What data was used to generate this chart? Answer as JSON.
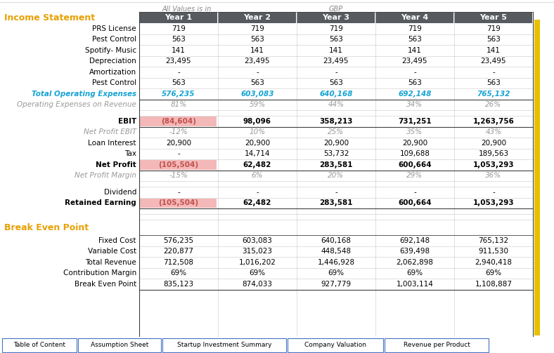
{
  "header_row": [
    "Year 1",
    "Year 2",
    "Year 3",
    "Year 4",
    "Year 5"
  ],
  "section1_title": "Income Statement",
  "rows": [
    {
      "label": "PRS License",
      "values": [
        "719",
        "719",
        "719",
        "719",
        "719"
      ],
      "style": "normal"
    },
    {
      "label": "Pest Control",
      "values": [
        "563",
        "563",
        "563",
        "563",
        "563"
      ],
      "style": "normal"
    },
    {
      "label": "Spotify- Music",
      "values": [
        "141",
        "141",
        "141",
        "141",
        "141"
      ],
      "style": "normal"
    },
    {
      "label": "Depreciation",
      "values": [
        "23,495",
        "23,495",
        "23,495",
        "23,495",
        "23,495"
      ],
      "style": "normal"
    },
    {
      "label": "Amortization",
      "values": [
        "-",
        "-",
        "-",
        "-",
        "-"
      ],
      "style": "normal"
    },
    {
      "label": "Pest Control",
      "values": [
        "563",
        "563",
        "563",
        "563",
        "563"
      ],
      "style": "normal"
    },
    {
      "label": "Total Operating Expenses",
      "values": [
        "576,235",
        "603,083",
        "640,168",
        "692,148",
        "765,132"
      ],
      "style": "teal_bold"
    },
    {
      "label": "Operating Expenses on Revenue",
      "values": [
        "81%",
        "59%",
        "44%",
        "34%",
        "26%"
      ],
      "style": "italic_gray"
    },
    {
      "label": "",
      "values": [
        "",
        "",
        "",
        "",
        ""
      ],
      "style": "spacer"
    },
    {
      "label": "EBIT",
      "values": [
        "(84,604)",
        "98,096",
        "358,213",
        "731,251",
        "1,263,756"
      ],
      "style": "bold_highlight_first"
    },
    {
      "label": "Net Profit EBIT",
      "values": [
        "-12%",
        "10%",
        "25%",
        "35%",
        "43%"
      ],
      "style": "italic_gray"
    },
    {
      "label": "Loan Interest",
      "values": [
        "20,900",
        "20,900",
        "20,900",
        "20,900",
        "20,900"
      ],
      "style": "normal"
    },
    {
      "label": "Tax",
      "values": [
        "-",
        "14,714",
        "53,732",
        "109,688",
        "189,563"
      ],
      "style": "normal"
    },
    {
      "label": "Net Profit",
      "values": [
        "(105,504)",
        "62,482",
        "283,581",
        "600,664",
        "1,053,293"
      ],
      "style": "bold_highlight_first"
    },
    {
      "label": "Net Profit Margin",
      "values": [
        "-15%",
        "6%",
        "20%",
        "29%",
        "36%"
      ],
      "style": "italic_gray"
    },
    {
      "label": "",
      "values": [
        "",
        "",
        "",
        "",
        ""
      ],
      "style": "spacer"
    },
    {
      "label": "Dividend",
      "values": [
        "-",
        "-",
        "-",
        "-",
        "-"
      ],
      "style": "normal"
    },
    {
      "label": "Retained Earning",
      "values": [
        "(105,504)",
        "62,482",
        "283,581",
        "600,664",
        "1,053,293"
      ],
      "style": "bold_highlight_first"
    },
    {
      "label": "",
      "values": [
        "",
        "",
        "",
        "",
        ""
      ],
      "style": "spacer"
    },
    {
      "label": "",
      "values": [
        "",
        "",
        "",
        "",
        ""
      ],
      "style": "spacer"
    }
  ],
  "section2_title": "Break Even Point",
  "rows2": [
    {
      "label": "Fixed Cost",
      "values": [
        "576,235",
        "603,083",
        "640,168",
        "692,148",
        "765,132"
      ],
      "style": "normal"
    },
    {
      "label": "Variable Cost",
      "values": [
        "220,877",
        "315,023",
        "448,548",
        "639,498",
        "911,530"
      ],
      "style": "normal"
    },
    {
      "label": "Total Revenue",
      "values": [
        "712,508",
        "1,016,202",
        "1,446,928",
        "2,062,898",
        "2,940,418"
      ],
      "style": "normal"
    },
    {
      "label": "Contribution Margin",
      "values": [
        "69%",
        "69%",
        "69%",
        "69%",
        "69%"
      ],
      "style": "normal"
    },
    {
      "label": "Break Even Point",
      "values": [
        "835,123",
        "874,033",
        "927,779",
        "1,003,114",
        "1,108,887"
      ],
      "style": "bold_border"
    }
  ],
  "tabs": [
    "Table of Content",
    "Assumption Sheet",
    "Startup Investment Summary",
    "Company Valuation",
    "Revenue per Product"
  ],
  "tab_widths": [
    108,
    120,
    178,
    138,
    150
  ],
  "colors": {
    "header_bg": "#575a5f",
    "teal": "#17a3d4",
    "orange": "#e8a000",
    "highlight_red": "#f4b8b8",
    "red_text": "#c0504d",
    "gray_text": "#999999",
    "border_dark": "#3f4040",
    "row_border": "#c8c8c8",
    "tab_border": "#4472c4",
    "white": "#ffffff",
    "yellow_bar": "#e8c000"
  }
}
